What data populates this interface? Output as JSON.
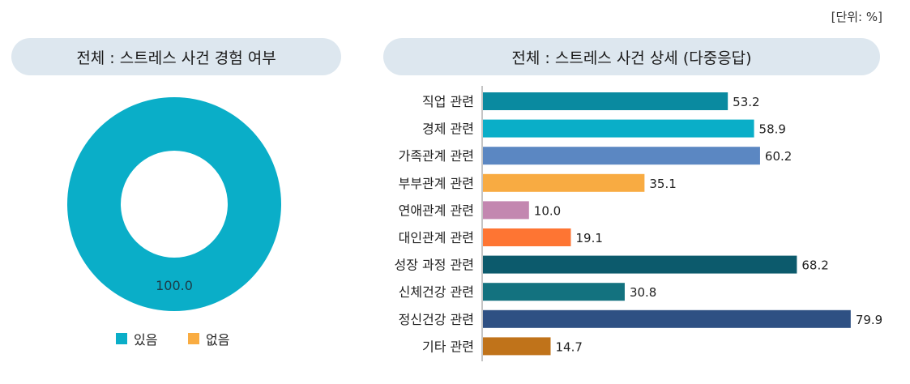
{
  "unit_label": "[단위: %]",
  "chart_data": [
    {
      "type": "pie",
      "title": "전체 : 스트레스 사건 경험 여부",
      "categories": [
        "있음",
        "없음"
      ],
      "values": [
        100.0,
        0.0
      ],
      "data_labels": [
        "100.0"
      ],
      "colors": [
        "#0aaec8",
        "#f9ac42"
      ],
      "donut": true,
      "legend": "bottom"
    },
    {
      "type": "bar",
      "orientation": "horizontal",
      "title": "전체 : 스트레스 사건 상세 (다중응답)",
      "categories": [
        "직업 관련",
        "경제 관련",
        "가족관계 관련",
        "부부관계 관련",
        "연애관계 관련",
        "대인관계 관련",
        "성장 과정 관련",
        "신체건강 관련",
        "정신건강 관련",
        "기타 관련"
      ],
      "values": [
        53.2,
        58.9,
        60.2,
        35.1,
        10.0,
        19.1,
        68.2,
        30.8,
        79.9,
        14.7
      ],
      "data_labels": [
        "53.2",
        "58.9",
        "60.2",
        "35.1",
        "10.0",
        "19.1",
        "68.2",
        "30.8",
        "79.9",
        "14.7"
      ],
      "colors": [
        "#0a8aa0",
        "#0aaec8",
        "#5b87c2",
        "#f8ab42",
        "#c387b0",
        "#fe7533",
        "#0c5a6c",
        "#13727f",
        "#2e5083",
        "#c0731a"
      ],
      "grid": false
    }
  ]
}
